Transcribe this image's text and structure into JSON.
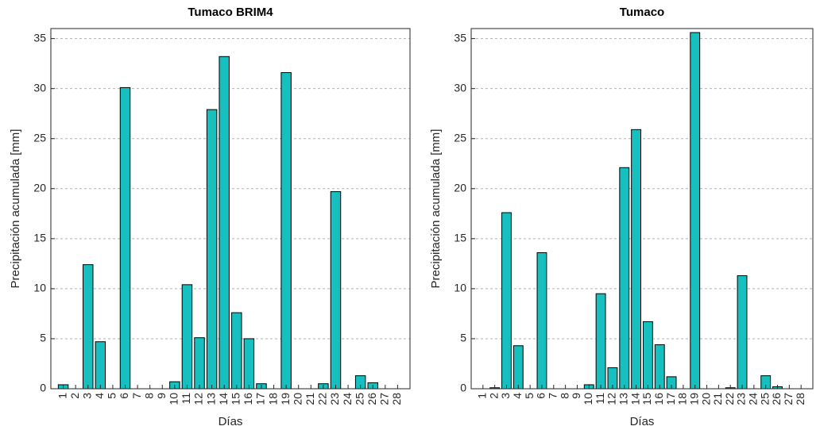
{
  "chart_data": [
    {
      "type": "bar",
      "title": "Tumaco BRIM4",
      "x_label": "Días",
      "y_label": "Precipitación acumulada [mm]",
      "categories": [
        "1",
        "2",
        "3",
        "4",
        "5",
        "6",
        "7",
        "8",
        "9",
        "10",
        "11",
        "12",
        "13",
        "14",
        "15",
        "16",
        "17",
        "18",
        "19",
        "20",
        "21",
        "22",
        "23",
        "24",
        "25",
        "26",
        "27",
        "28"
      ],
      "values": [
        0.4,
        0,
        12.4,
        4.7,
        0,
        30.1,
        0,
        0,
        0,
        0.7,
        10.4,
        5.1,
        27.9,
        33.2,
        7.6,
        5.0,
        0.5,
        0,
        31.6,
        0,
        0,
        0.5,
        19.7,
        0,
        1.3,
        0.6,
        0,
        0
      ],
      "color": "#17bfbf",
      "ylim": [
        0,
        36
      ],
      "yticks": [
        0,
        5,
        10,
        15,
        20,
        25,
        30,
        35
      ],
      "grid": true
    },
    {
      "type": "bar",
      "title": "Tumaco",
      "x_label": "Días",
      "y_label": "Precipitación acumulada [mm]",
      "categories": [
        "1",
        "2",
        "3",
        "4",
        "5",
        "6",
        "7",
        "8",
        "9",
        "10",
        "11",
        "12",
        "13",
        "14",
        "15",
        "16",
        "17",
        "18",
        "19",
        "20",
        "21",
        "22",
        "23",
        "24",
        "25",
        "26",
        "27",
        "28"
      ],
      "values": [
        0,
        0.1,
        17.6,
        4.3,
        0,
        13.6,
        0,
        0,
        0,
        0.4,
        9.5,
        2.1,
        22.1,
        25.9,
        6.7,
        4.4,
        1.2,
        0,
        35.6,
        0,
        0,
        0.1,
        11.3,
        0,
        1.3,
        0.2,
        0,
        0
      ],
      "color": "#17bfbf",
      "ylim": [
        0,
        36
      ],
      "yticks": [
        0,
        5,
        10,
        15,
        20,
        25,
        30,
        35
      ],
      "grid": true
    }
  ]
}
